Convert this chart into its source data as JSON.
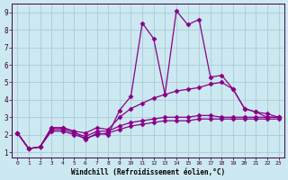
{
  "xlabel": "Windchill (Refroidissement éolien,°C)",
  "bg_color": "#cce8f0",
  "line_color": "#880088",
  "grid_color": "#aaccd8",
  "xlim": [
    -0.5,
    23.5
  ],
  "ylim": [
    0.7,
    9.5
  ],
  "xticks": [
    0,
    1,
    2,
    3,
    4,
    5,
    6,
    7,
    8,
    9,
    10,
    11,
    12,
    13,
    14,
    15,
    16,
    17,
    18,
    19,
    20,
    21,
    22,
    23
  ],
  "yticks": [
    1,
    2,
    3,
    4,
    5,
    6,
    7,
    8,
    9
  ],
  "line1_x": [
    0,
    1,
    2,
    3,
    4,
    5,
    6,
    7,
    8,
    9,
    10,
    11,
    12,
    13,
    14,
    15,
    16,
    17,
    18,
    19,
    20,
    21,
    22,
    23
  ],
  "line1_y": [
    2.1,
    1.2,
    1.3,
    2.4,
    2.4,
    2.2,
    1.7,
    2.1,
    2.0,
    3.4,
    4.2,
    8.4,
    7.5,
    4.3,
    9.1,
    8.3,
    8.6,
    5.3,
    5.4,
    4.6,
    3.5,
    3.3,
    3.0,
    3.0
  ],
  "line2_x": [
    0,
    1,
    2,
    3,
    4,
    5,
    6,
    7,
    8,
    9,
    10,
    11,
    12,
    13,
    14,
    15,
    16,
    17,
    18,
    19,
    20,
    21,
    22,
    23
  ],
  "line2_y": [
    2.1,
    1.2,
    1.3,
    2.4,
    2.4,
    2.2,
    2.1,
    2.4,
    2.3,
    3.0,
    3.5,
    3.8,
    4.1,
    4.3,
    4.5,
    4.6,
    4.7,
    4.9,
    5.0,
    4.6,
    3.5,
    3.3,
    3.2,
    3.0
  ],
  "line3_x": [
    0,
    1,
    2,
    3,
    4,
    5,
    6,
    7,
    8,
    9,
    10,
    11,
    12,
    13,
    14,
    15,
    16,
    17,
    18,
    19,
    20,
    21,
    22,
    23
  ],
  "line3_y": [
    2.1,
    1.2,
    1.3,
    2.3,
    2.3,
    2.1,
    1.9,
    2.2,
    2.2,
    2.5,
    2.7,
    2.8,
    2.9,
    3.0,
    3.0,
    3.0,
    3.1,
    3.1,
    3.0,
    3.0,
    3.0,
    3.0,
    3.0,
    3.0
  ],
  "line4_x": [
    0,
    1,
    2,
    3,
    4,
    5,
    6,
    7,
    8,
    9,
    10,
    11,
    12,
    13,
    14,
    15,
    16,
    17,
    18,
    19,
    20,
    21,
    22,
    23
  ],
  "line4_y": [
    2.1,
    1.2,
    1.3,
    2.2,
    2.2,
    2.0,
    1.8,
    2.0,
    2.1,
    2.3,
    2.5,
    2.6,
    2.7,
    2.8,
    2.8,
    2.8,
    2.9,
    2.9,
    2.9,
    2.9,
    2.9,
    2.9,
    2.9,
    2.9
  ]
}
